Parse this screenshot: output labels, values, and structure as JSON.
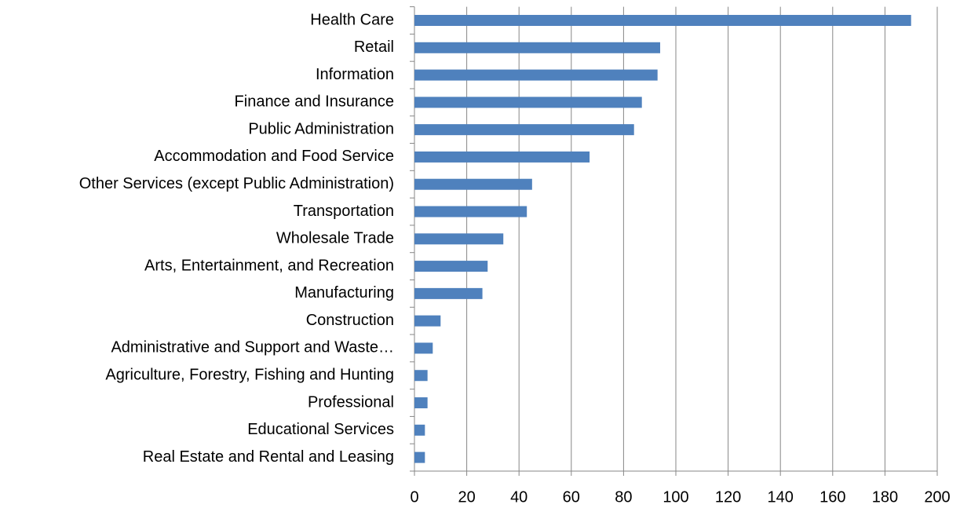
{
  "chart_data": {
    "type": "hbar",
    "categories": [
      "Health Care",
      "Retail",
      "Information",
      "Finance and Insurance",
      "Public Administration",
      "Accommodation and Food Service",
      "Other Services (except Public Administration)",
      "Transportation",
      "Wholesale Trade",
      "Arts, Entertainment, and Recreation",
      "Manufacturing",
      "Construction",
      "Administrative and Support and Waste…",
      "Agriculture, Forestry, Fishing and Hunting",
      "Professional",
      "Educational Services",
      "Real Estate and Rental and Leasing"
    ],
    "values": [
      190,
      94,
      93,
      87,
      84,
      67,
      45,
      43,
      34,
      28,
      26,
      10,
      7,
      5,
      5,
      4,
      4
    ],
    "color": "#4f81bd",
    "xlim": [
      0,
      200
    ],
    "xticks": [
      0,
      20,
      40,
      60,
      80,
      100,
      120,
      140,
      160,
      180,
      200
    ],
    "grid": true
  }
}
